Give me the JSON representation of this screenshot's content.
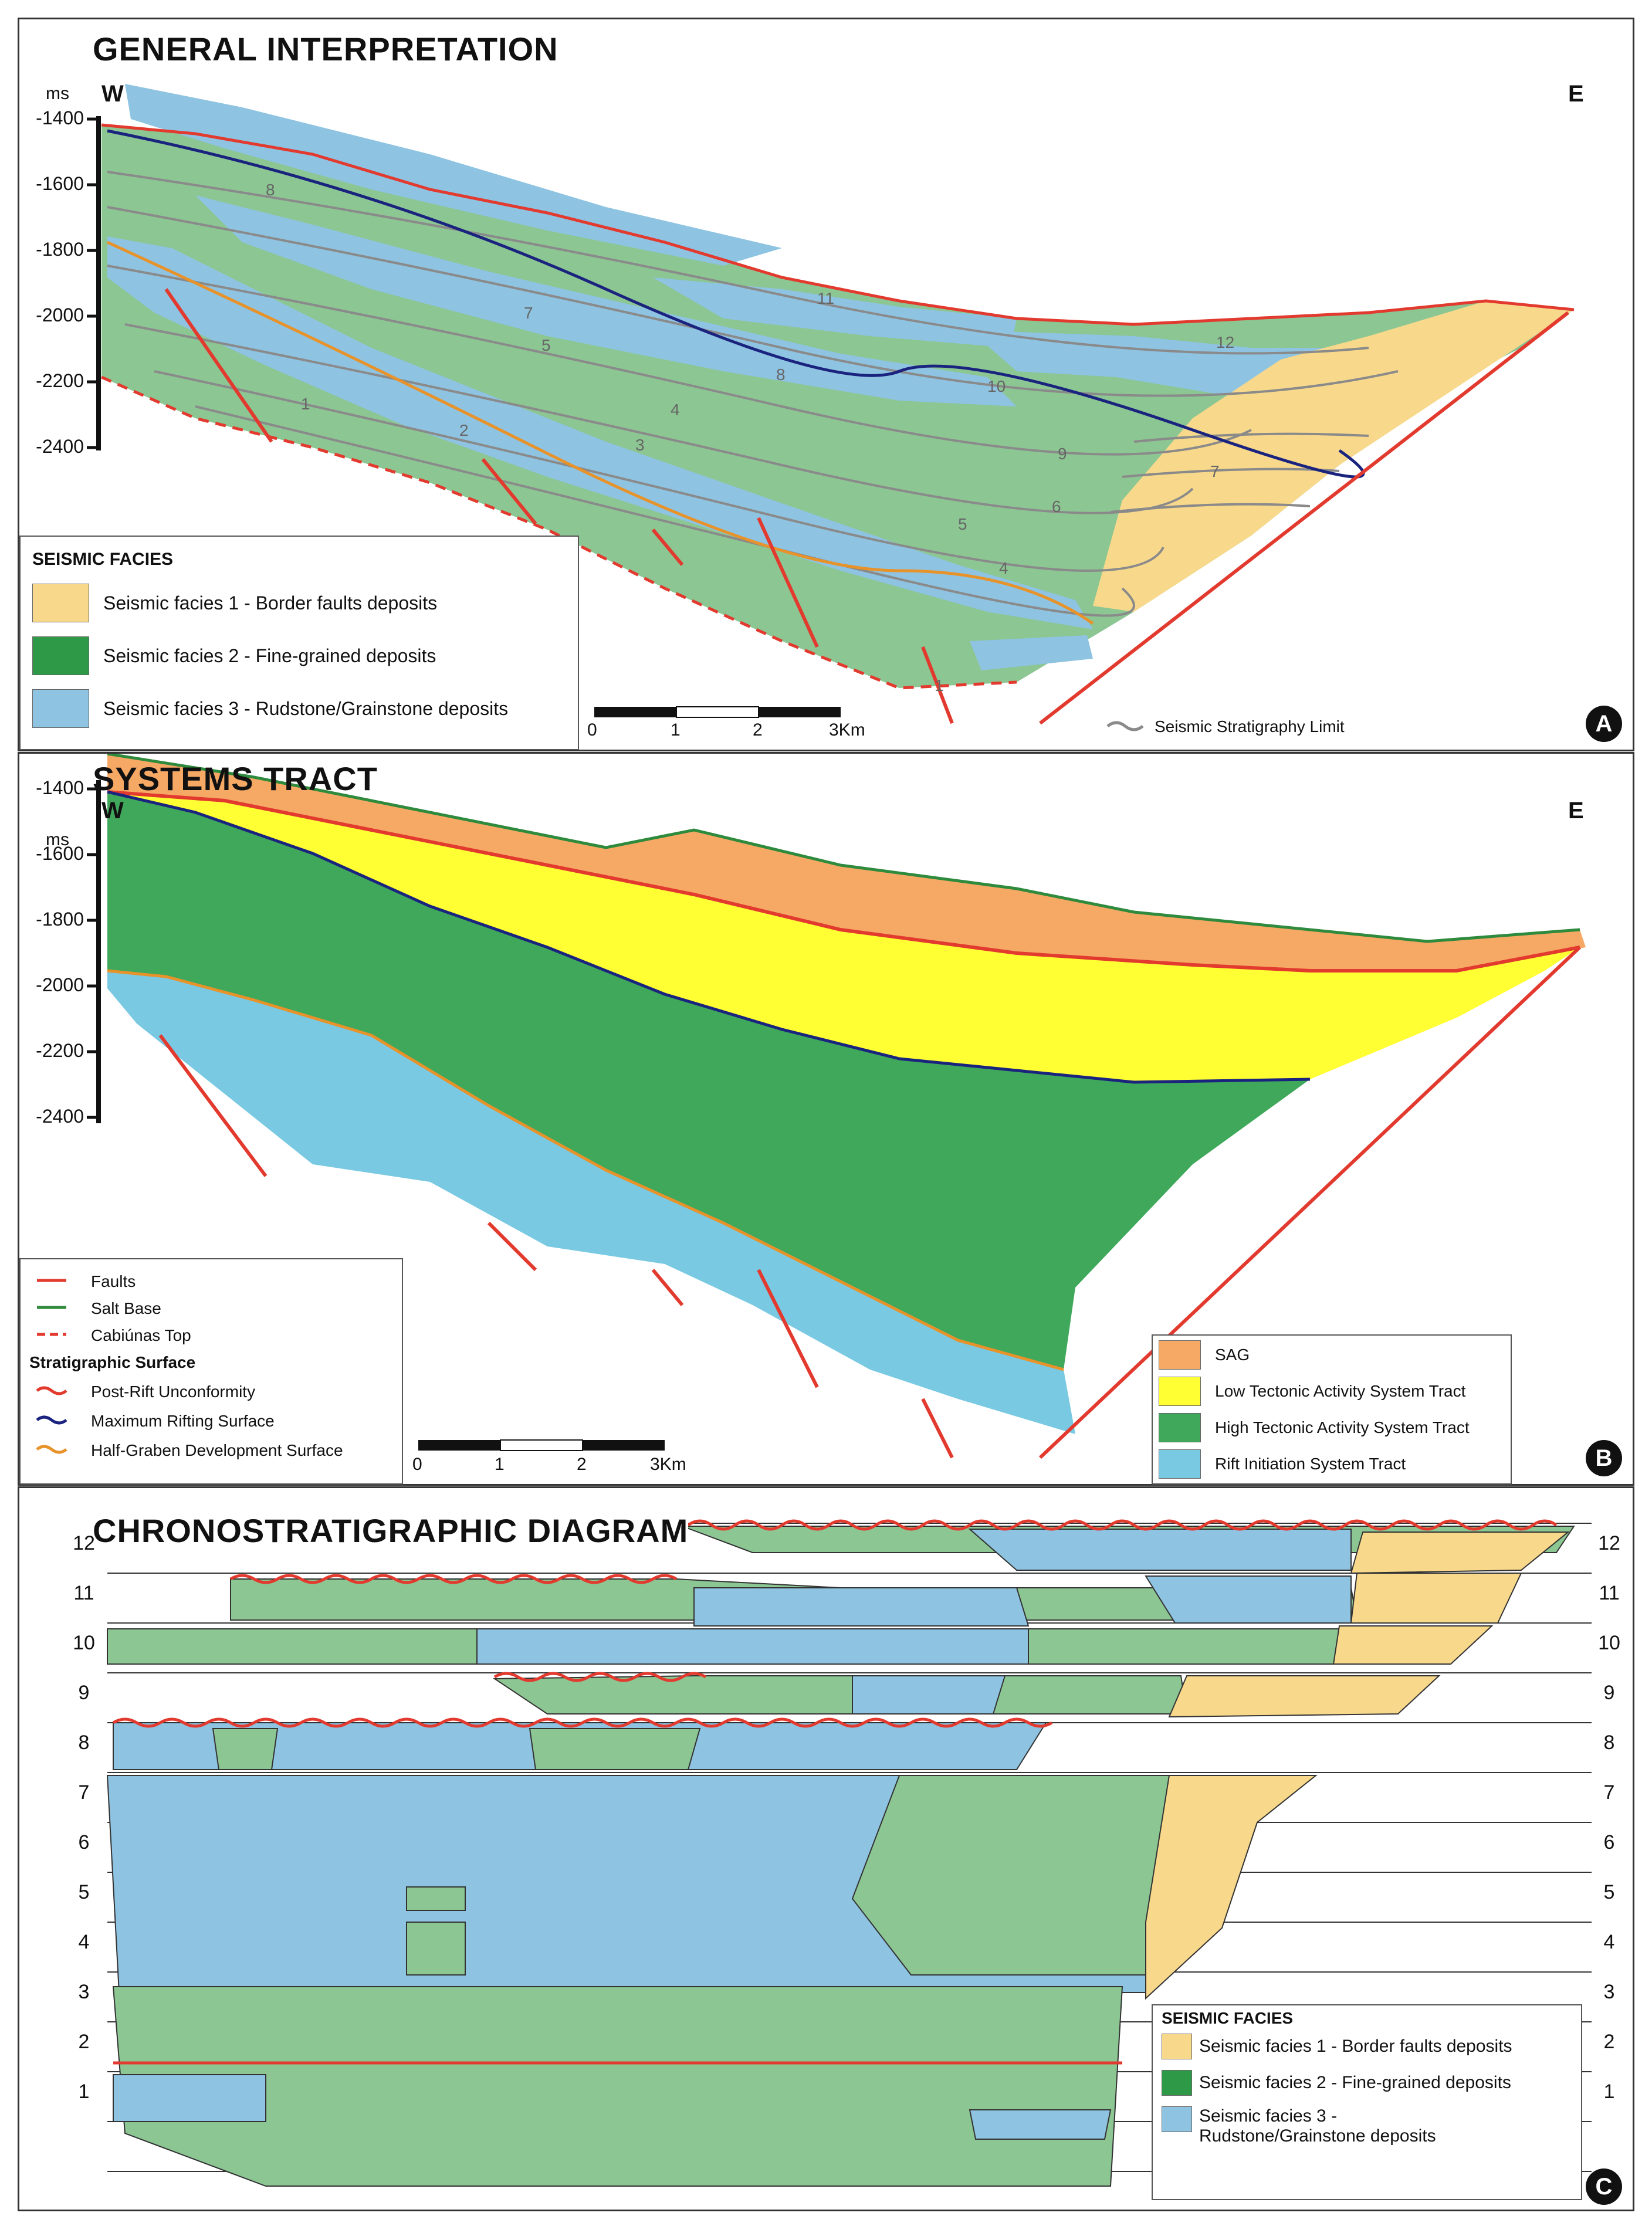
{
  "panel_a": {
    "title": "GENERAL INTERPRETATION",
    "west": "W",
    "east": "E",
    "unit": "ms",
    "depth_ticks": [
      "-1400",
      "-1600",
      "-1800",
      "-2000",
      "-2200",
      "-2400"
    ],
    "unit_numbers": [
      "1",
      "2",
      "3",
      "4",
      "5",
      "6",
      "7",
      "8",
      "9",
      "10",
      "11",
      "12"
    ],
    "legend": {
      "title": "SEISMIC FACIES",
      "items": [
        {
          "label": "Seismic facies 1 - Border faults deposits",
          "color": "#f8d98c"
        },
        {
          "label": "Seismic facies 2 - Fine-grained deposits",
          "color": "#2e9a48"
        },
        {
          "label": "Seismic facies 3 - Rudstone/Grainstone deposits",
          "color": "#8ec3e2"
        }
      ]
    },
    "scale_labels": [
      "0",
      "1",
      "2",
      "3Km"
    ],
    "limit_label": "Seismic Stratigraphy Limit",
    "badge": "A"
  },
  "panel_b": {
    "title": "SYSTEMS TRACT",
    "west": "W",
    "east": "E",
    "unit": "ms",
    "depth_ticks": [
      "-1400",
      "-1600",
      "-1800",
      "-2000",
      "-2200",
      "-2400"
    ],
    "line_legend": {
      "items": [
        "Faults",
        "Salt Base",
        "Cabiúnas Top"
      ],
      "subtitle": "Stratigraphic Surface",
      "surfaces": [
        "Post-Rift Unconformity",
        "Maximum Rifting Surface",
        "Half-Graben Development Surface"
      ]
    },
    "scale_labels": [
      "0",
      "1",
      "2",
      "3Km"
    ],
    "tract_legend": [
      {
        "label": "SAG",
        "color": "#f6a865"
      },
      {
        "label": "Low Tectonic Activity System Tract",
        "color": "#ffff33"
      },
      {
        "label": "High Tectonic Activity System Tract",
        "color": "#3fa85a"
      },
      {
        "label": "Rift Initiation System Tract",
        "color": "#79c9e2"
      }
    ],
    "badge": "B"
  },
  "panel_c": {
    "title": "CHRONOSTRATIGRAPHIC DIAGRAM",
    "levels": [
      "12",
      "11",
      "10",
      "9",
      "8",
      "7",
      "6",
      "5",
      "4",
      "3",
      "2",
      "1"
    ],
    "legend": {
      "title": "SEISMIC FACIES",
      "items": [
        {
          "label": "Seismic facies 1 - Border faults deposits",
          "color": "#f8d98c"
        },
        {
          "label": "Seismic facies 2 - Fine-grained deposits",
          "color": "#2e9a48"
        },
        {
          "label": "Seismic facies 3 - Rudstone/Grainstone deposits",
          "color": "#8ec3e2"
        }
      ]
    },
    "badge": "C"
  },
  "colors": {
    "fault": "#e23a2e",
    "salt_base": "#2e8a3c",
    "mrs": "#1a237e",
    "hgds": "#e8922a",
    "limit": "#8a8a8a",
    "green_pale": "#8cc693",
    "blue": "#8ec3e2",
    "yellow_pale": "#f8d98c"
  }
}
